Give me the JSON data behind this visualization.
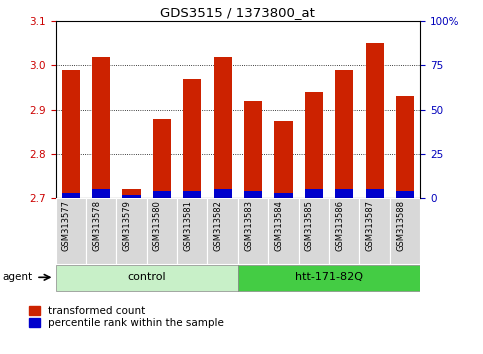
{
  "title": "GDS3515 / 1373800_at",
  "samples": [
    "GSM313577",
    "GSM313578",
    "GSM313579",
    "GSM313580",
    "GSM313581",
    "GSM313582",
    "GSM313583",
    "GSM313584",
    "GSM313585",
    "GSM313586",
    "GSM313587",
    "GSM313588"
  ],
  "transformed_count": [
    2.99,
    3.02,
    2.72,
    2.88,
    2.97,
    3.02,
    2.92,
    2.875,
    2.94,
    2.99,
    3.05,
    2.93
  ],
  "percentile_rank": [
    3,
    5,
    2,
    4,
    4,
    5,
    4,
    3,
    5,
    5,
    5,
    4
  ],
  "base_value": 2.7,
  "ylim_left": [
    2.7,
    3.1
  ],
  "ylim_right": [
    0,
    100
  ],
  "yticks_left": [
    2.7,
    2.8,
    2.9,
    3.0,
    3.1
  ],
  "yticks_right": [
    0,
    25,
    50,
    75,
    100
  ],
  "groups": [
    {
      "label": "control",
      "start": 0,
      "end": 5,
      "color": "#c8f0c8"
    },
    {
      "label": "htt-171-82Q",
      "start": 6,
      "end": 11,
      "color": "#44cc44"
    }
  ],
  "agent_label": "agent",
  "bar_color_red": "#cc2200",
  "bar_color_blue": "#0000cc",
  "bar_width": 0.6,
  "tick_label_color_left": "#cc0000",
  "tick_label_color_right": "#0000bb",
  "legend_red": "transformed count",
  "legend_blue": "percentile rank within the sample",
  "xlabel_bg": "#d0d0d0"
}
